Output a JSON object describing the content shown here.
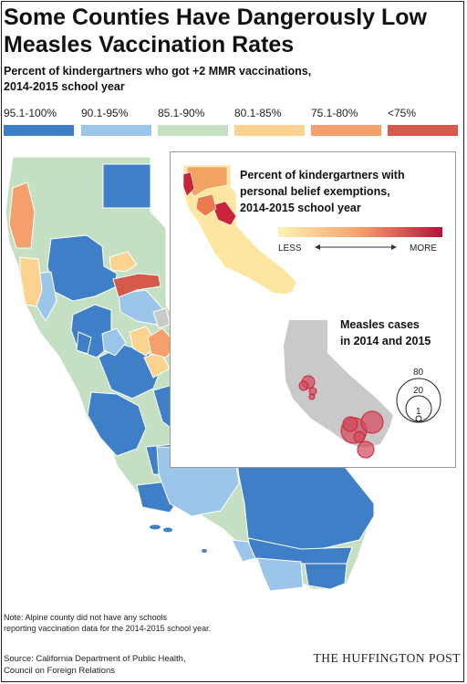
{
  "title_line1": "Some Counties Have Dangerously Low",
  "title_line2": "Measles Vaccination Rates",
  "subtitle_line1": "Percent of kindergartners who got +2 MMR vaccinations,",
  "subtitle_line2": "2014-2015 school year",
  "legend": [
    {
      "label": "95.1-100%",
      "color": "#3f7fc8"
    },
    {
      "label": "90.1-95%",
      "color": "#9cc5ea"
    },
    {
      "label": "85.1-90%",
      "color": "#c4dfc1"
    },
    {
      "label": "80.1-85%",
      "color": "#fbd38f"
    },
    {
      "label": "75.1-80%",
      "color": "#f5a06c"
    },
    {
      "label": "<75%",
      "color": "#d65a4c"
    }
  ],
  "inset": {
    "title_line1": "Percent of kindergartners with",
    "title_line2": "personal belief exemptions,",
    "title_line3": "2014-2015 school year",
    "scale_less": "LESS",
    "scale_more": "MORE",
    "measles_line1": "Measles cases",
    "measles_line2": "in 2014 and 2015",
    "size_80": "80",
    "size_20": "20",
    "size_1": "1"
  },
  "note_line1": "Note: Alpine county did not have any schools",
  "note_line2": "reporting vaccination data for the 2014-2015 school year.",
  "source_line1": "Source: California Department of Public Health,",
  "source_line2": "Council on Foreign Relations",
  "brand": "THE HUFFINGTON POST"
}
